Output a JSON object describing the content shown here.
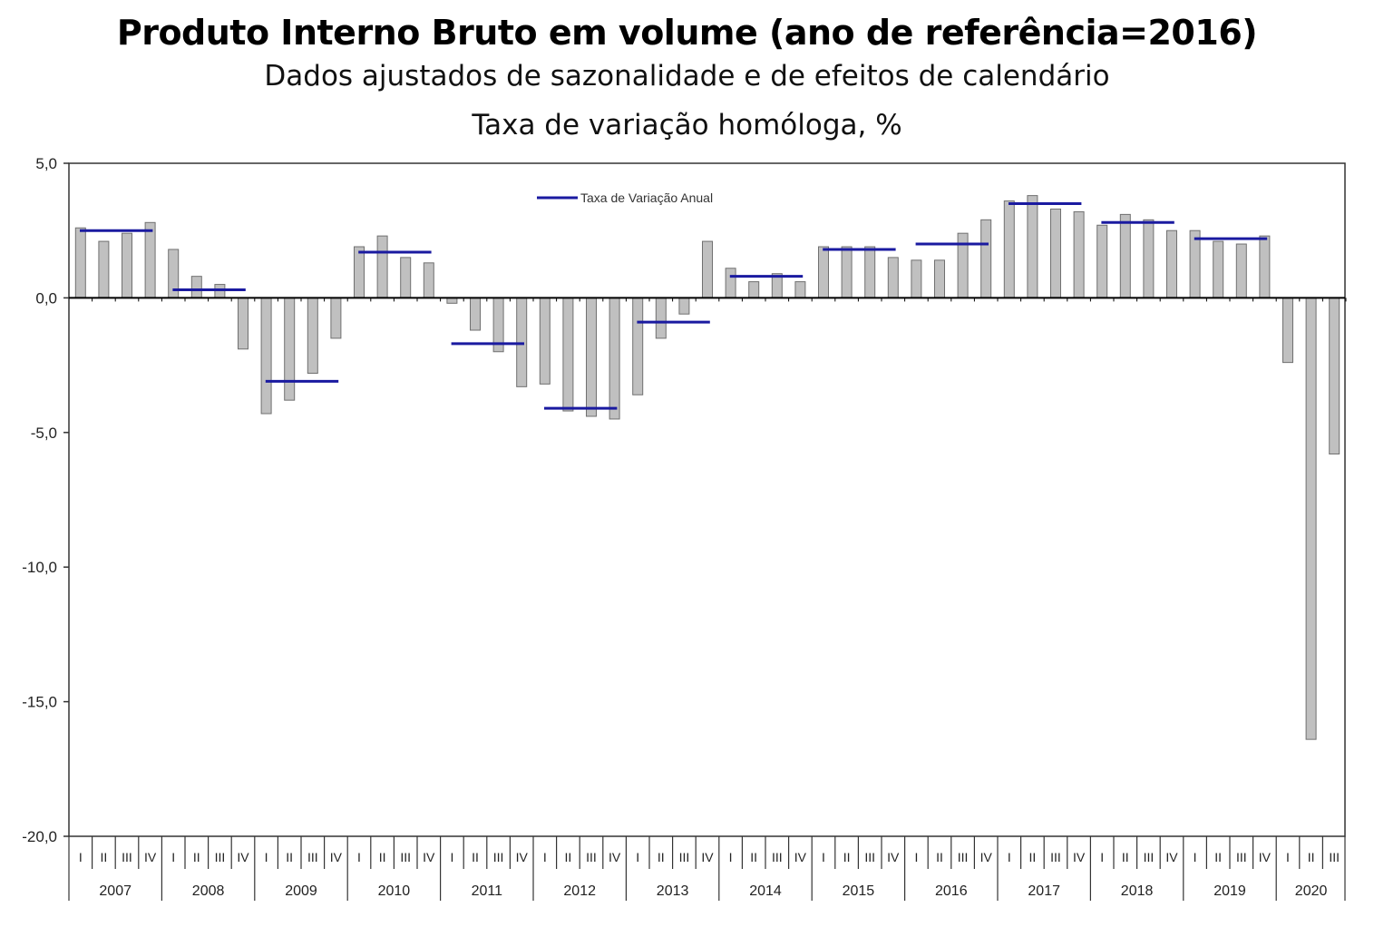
{
  "chart_data": {
    "type": "bar",
    "title": "Produto Interno Bruto em volume (ano de referência=2016)",
    "subtitle": "Dados ajustados de sazonalidade e de efeitos de calendário",
    "ylabel": "Taxa de variação homóloga, %",
    "ylim": [
      -20,
      5
    ],
    "yticks": [
      5,
      0,
      -5,
      -10,
      -15,
      -20
    ],
    "ytick_labels": [
      "5,0",
      "0,0",
      "-5,0",
      "-10,0",
      "-15,0",
      "-20,0"
    ],
    "legend_label": "Taxa de Variação Anual",
    "legend_position": "top-center",
    "years": [
      {
        "year": "2007",
        "quarters": [
          "I",
          "II",
          "III",
          "IV"
        ],
        "values": [
          2.6,
          2.1,
          2.4,
          2.8
        ],
        "annual": 2.5
      },
      {
        "year": "2008",
        "quarters": [
          "I",
          "II",
          "III",
          "IV"
        ],
        "values": [
          1.8,
          0.8,
          0.5,
          -1.9
        ],
        "annual": 0.3
      },
      {
        "year": "2009",
        "quarters": [
          "I",
          "II",
          "III",
          "IV"
        ],
        "values": [
          -4.3,
          -3.8,
          -2.8,
          -1.5
        ],
        "annual": -3.1
      },
      {
        "year": "2010",
        "quarters": [
          "I",
          "II",
          "III",
          "IV"
        ],
        "values": [
          1.9,
          2.3,
          1.5,
          1.3
        ],
        "annual": 1.7
      },
      {
        "year": "2011",
        "quarters": [
          "I",
          "II",
          "III",
          "IV"
        ],
        "values": [
          -0.2,
          -1.2,
          -2.0,
          -3.3
        ],
        "annual": -1.7
      },
      {
        "year": "2012",
        "quarters": [
          "I",
          "II",
          "III",
          "IV"
        ],
        "values": [
          -3.2,
          -4.2,
          -4.4,
          -4.5
        ],
        "annual": -4.1
      },
      {
        "year": "2013",
        "quarters": [
          "I",
          "II",
          "III",
          "IV"
        ],
        "values": [
          -3.6,
          -1.5,
          -0.6,
          2.1
        ],
        "annual": -0.9
      },
      {
        "year": "2014",
        "quarters": [
          "I",
          "II",
          "III",
          "IV"
        ],
        "values": [
          1.1,
          0.6,
          0.9,
          0.6
        ],
        "annual": 0.8
      },
      {
        "year": "2015",
        "quarters": [
          "I",
          "II",
          "III",
          "IV"
        ],
        "values": [
          1.9,
          1.9,
          1.9,
          1.5
        ],
        "annual": 1.8
      },
      {
        "year": "2016",
        "quarters": [
          "I",
          "II",
          "III",
          "IV"
        ],
        "values": [
          1.4,
          1.4,
          2.4,
          2.9
        ],
        "annual": 2.0
      },
      {
        "year": "2017",
        "quarters": [
          "I",
          "II",
          "III",
          "IV"
        ],
        "values": [
          3.6,
          3.8,
          3.3,
          3.2
        ],
        "annual": 3.5
      },
      {
        "year": "2018",
        "quarters": [
          "I",
          "II",
          "III",
          "IV"
        ],
        "values": [
          2.7,
          3.1,
          2.9,
          2.5
        ],
        "annual": 2.8
      },
      {
        "year": "2019",
        "quarters": [
          "I",
          "II",
          "III",
          "IV"
        ],
        "values": [
          2.5,
          2.1,
          2.0,
          2.3
        ],
        "annual": 2.2
      },
      {
        "year": "2020",
        "quarters": [
          "I",
          "II",
          "III"
        ],
        "values": [
          -2.4,
          -16.4,
          -5.8
        ],
        "annual": null
      }
    ]
  }
}
